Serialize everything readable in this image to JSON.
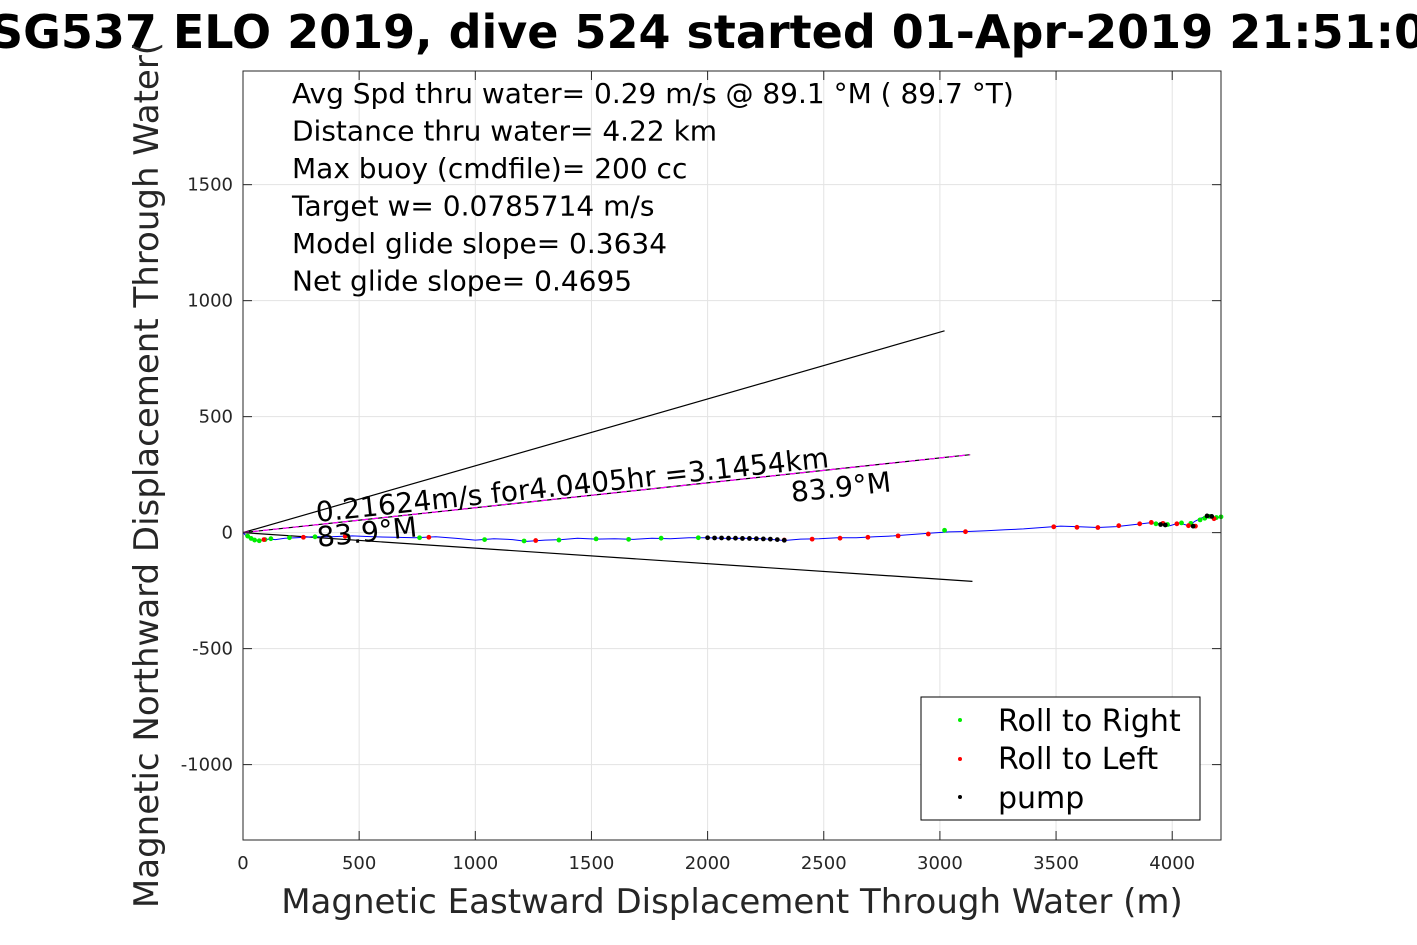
{
  "chart_data": {
    "type": "scatter",
    "title": "SG537 ELO 2019, dive 524 started 01-Apr-2019 21:51:0",
    "xlabel": "Magnetic Eastward Displacement Through Water (m)",
    "ylabel": "Magnetic Northward Displacement Through Water(",
    "xlim": [
      0,
      4210
    ],
    "ylim": [
      -1325,
      1990
    ],
    "xticks": [
      0,
      500,
      1000,
      1500,
      2000,
      2500,
      3000,
      3500,
      4000
    ],
    "xtick_labels": [
      "0",
      "500",
      "1000",
      "1500",
      "2000",
      "2500",
      "3000",
      "3500",
      "4000"
    ],
    "yticks": [
      1500,
      1000,
      500,
      0,
      -500,
      -1000
    ],
    "ytick_labels": [
      "1500",
      "1000",
      "500",
      "0",
      "-500",
      "-1000"
    ],
    "grid": true,
    "legend_position": "bottom-right",
    "info_lines": [
      "Avg Spd thru water=  0.29 m/s @  89.1 °M ( 89.7 °T)",
      "Distance thru water=  4.22 km",
      "Max buoy (cmdfile)= 200 cc",
      "Target w= 0.0785714 m/s",
      "Model glide slope= 0.3634",
      "Net glide slope= 0.4695"
    ],
    "current_label": "0.21624m/s for4.0405hr =3.1454km",
    "heading_labels": [
      "83.9°M",
      "83.9°M"
    ],
    "series": [
      {
        "name": "track",
        "color": "#0000ff",
        "x": [
          0,
          20,
          40,
          60,
          80,
          110,
          140,
          180,
          230,
          300,
          380,
          470,
          560,
          650,
          740,
          830,
          920,
          1000,
          1080,
          1160,
          1220,
          1300,
          1370,
          1440,
          1520,
          1600,
          1680,
          1760,
          1840,
          1920,
          2000,
          2080,
          2160,
          2240,
          2330,
          2400,
          2480,
          2560,
          2640,
          2720,
          2800,
          2880,
          2960,
          3040,
          3120,
          3200,
          3280,
          3360,
          3440,
          3520,
          3600,
          3680,
          3760,
          3840,
          3900,
          3950,
          3990,
          4030,
          4070,
          4100,
          4130,
          4160,
          4190,
          4210
        ],
        "y": [
          0,
          -20,
          -30,
          -35,
          -33,
          -28,
          -30,
          -24,
          -22,
          -18,
          -18,
          -14,
          -18,
          -20,
          -22,
          -18,
          -25,
          -32,
          -26,
          -30,
          -38,
          -32,
          -30,
          -24,
          -28,
          -26,
          -29,
          -24,
          -26,
          -22,
          -22,
          -25,
          -24,
          -26,
          -34,
          -28,
          -26,
          -22,
          -22,
          -18,
          -14,
          -8,
          -2,
          3,
          5,
          8,
          12,
          16,
          22,
          28,
          25,
          22,
          26,
          35,
          42,
          38,
          30,
          42,
          30,
          50,
          65,
          70,
          62,
          68
        ]
      },
      {
        "name": "Roll to Right",
        "color": "#00ee00",
        "x": [
          20,
          35,
          50,
          70,
          95,
          120,
          200,
          310,
          450,
          760,
          1040,
          1210,
          1360,
          1520,
          1660,
          1800,
          1960,
          3020,
          3930,
          3980,
          4040,
          4080,
          4120,
          4140,
          4160,
          4190,
          4210
        ],
        "y": [
          -15,
          -25,
          -32,
          -35,
          -30,
          -26,
          -22,
          -18,
          -14,
          -22,
          -30,
          -36,
          -32,
          -27,
          -29,
          -24,
          -22,
          10,
          38,
          35,
          42,
          40,
          55,
          62,
          70,
          65,
          68
        ]
      },
      {
        "name": "Roll to Left",
        "color": "#ff0000",
        "x": [
          90,
          260,
          440,
          800,
          1260,
          2330,
          2450,
          2570,
          2690,
          2820,
          2950,
          3110,
          3490,
          3590,
          3680,
          3770,
          3860,
          3910,
          3960,
          4020,
          4070,
          4100,
          4180
        ],
        "y": [
          -30,
          -20,
          -16,
          -20,
          -34,
          -32,
          -28,
          -24,
          -20,
          -14,
          -6,
          4,
          25,
          23,
          22,
          30,
          38,
          44,
          40,
          38,
          30,
          28,
          60
        ]
      },
      {
        "name": "pump",
        "color": "#000000",
        "x": [
          2000,
          2030,
          2060,
          2090,
          2120,
          2150,
          2180,
          2210,
          2240,
          2270,
          2300,
          2330,
          3950,
          3970,
          4090,
          4150,
          4170
        ],
        "y": [
          -22,
          -23,
          -23,
          -24,
          -24,
          -25,
          -25,
          -26,
          -27,
          -28,
          -30,
          -33,
          35,
          33,
          28,
          72,
          70
        ]
      }
    ],
    "lines": [
      {
        "role": "upper bound",
        "color": "#000000",
        "x": [
          0,
          3020
        ],
        "y": [
          0,
          870
        ]
      },
      {
        "role": "lower bound",
        "color": "#000000",
        "x": [
          0,
          3140
        ],
        "y": [
          0,
          -210
        ]
      },
      {
        "role": "current",
        "color": "#000000",
        "x": [
          0,
          3130
        ],
        "y": [
          0,
          336
        ]
      },
      {
        "role": "current",
        "color": "#ff00ff",
        "x": [
          0,
          3130
        ],
        "y": [
          0,
          336
        ]
      }
    ],
    "legend": [
      "Roll to Right",
      "Roll to Left",
      "pump"
    ]
  }
}
